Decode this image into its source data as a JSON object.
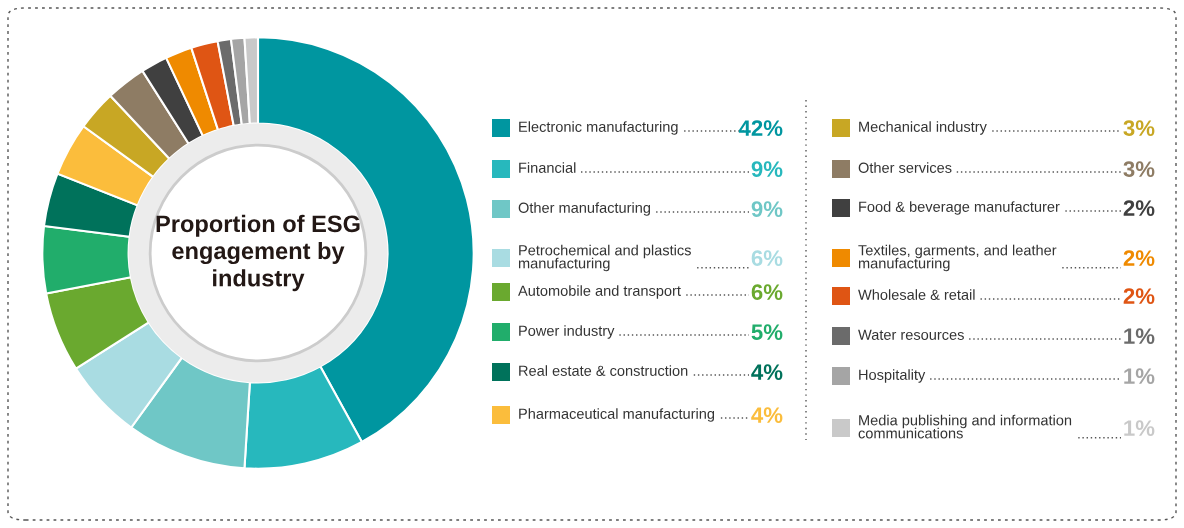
{
  "chart_data": {
    "type": "donut",
    "title": "Proportion of ESG\nengagement by\nindustry",
    "legend": "right",
    "categories": [
      "Electronic manufacturing",
      "Financial",
      "Other manufacturing",
      "Petrochemical and plastics\nmanufacturing",
      "Automobile and transport",
      "Power industry",
      "Real estate & construction",
      "Pharmaceutical manufacturing",
      "Mechanical industry",
      "Other services",
      "Food & beverage manufacturer",
      "Textiles, garments, and leather\nmanufacturing",
      "Wholesale & retail",
      "Water resources",
      "Hospitality",
      "Media publishing and information\ncommunications"
    ],
    "values": [
      42,
      9,
      9,
      6,
      6,
      5,
      4,
      4,
      3,
      3,
      2,
      2,
      2,
      1,
      1,
      1
    ],
    "value_labels": [
      "42%",
      "9%",
      "9%",
      "6%",
      "6%",
      "5%",
      "4%",
      "4%",
      "3%",
      "3%",
      "2%",
      "2%",
      "2%",
      "1%",
      "1%",
      "1%"
    ],
    "colors": [
      "#0096a0",
      "#27b8bd",
      "#6fc7c6",
      "#a9dce2",
      "#6aa92f",
      "#21ad6b",
      "#00725b",
      "#fbbd3c",
      "#c8a724",
      "#8e7c64",
      "#404040",
      "#ef8a00",
      "#df5514",
      "#6b6b6b",
      "#a5a5a5",
      "#c9c9c9"
    ]
  }
}
